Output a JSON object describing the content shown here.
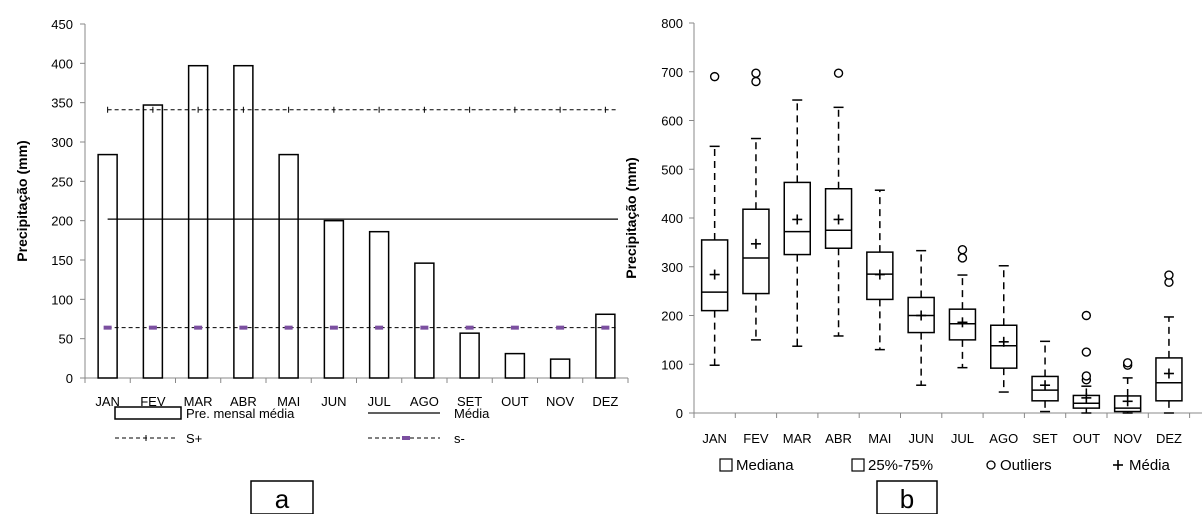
{
  "chart_data": [
    {
      "type": "bar",
      "panel_label": "a",
      "ylabel": "Precipitação (mm)",
      "ylim": [
        0,
        450
      ],
      "yticks": [
        0,
        50,
        100,
        150,
        200,
        250,
        300,
        350,
        400,
        450
      ],
      "categories": [
        "JAN",
        "FEV",
        "MAR",
        "ABR",
        "MAI",
        "JUN",
        "JUL",
        "AGO",
        "SET",
        "OUT",
        "NOV",
        "DEZ"
      ],
      "series": [
        {
          "name": "Pre. mensal média",
          "type": "bar",
          "values": [
            284,
            347,
            397,
            397,
            284,
            200,
            186,
            146,
            57,
            31,
            24,
            81
          ]
        },
        {
          "name": "Média",
          "type": "line",
          "values": [
            202,
            202,
            202,
            202,
            202,
            202,
            202,
            202,
            202,
            202,
            202,
            202
          ]
        },
        {
          "name": "S+",
          "type": "line",
          "values": [
            341,
            341,
            341,
            341,
            341,
            341,
            341,
            341,
            341,
            341,
            341,
            341
          ]
        },
        {
          "name": "s-",
          "type": "line",
          "values": [
            64,
            64,
            64,
            64,
            64,
            64,
            64,
            64,
            64,
            64,
            64,
            64
          ]
        }
      ],
      "grid": false,
      "legend_position": "bottom",
      "colors": {
        "bars": "#000000",
        "s_minus_marker": "#7b4fa0"
      }
    },
    {
      "type": "box",
      "panel_label": "b",
      "ylabel": "Precipitação (mm)",
      "ylim": [
        0,
        800
      ],
      "yticks": [
        0,
        100,
        200,
        300,
        400,
        500,
        600,
        700,
        800
      ],
      "categories": [
        "JAN",
        "FEV",
        "MAR",
        "ABR",
        "MAI",
        "JUN",
        "JUL",
        "AGO",
        "SET",
        "OUT",
        "NOV",
        "DEZ"
      ],
      "boxes": [
        {
          "min": 98,
          "q1": 210,
          "median": 248,
          "q3": 355,
          "max": 547,
          "mean": 284,
          "outliers": [
            690
          ]
        },
        {
          "min": 150,
          "q1": 245,
          "median": 318,
          "q3": 418,
          "max": 563,
          "mean": 347,
          "outliers": [
            680,
            697
          ]
        },
        {
          "min": 137,
          "q1": 325,
          "median": 372,
          "q3": 473,
          "max": 642,
          "mean": 397,
          "outliers": []
        },
        {
          "min": 158,
          "q1": 338,
          "median": 375,
          "q3": 460,
          "max": 627,
          "mean": 397,
          "outliers": [
            697
          ]
        },
        {
          "min": 130,
          "q1": 233,
          "median": 285,
          "q3": 330,
          "max": 457,
          "mean": 284,
          "outliers": []
        },
        {
          "min": 57,
          "q1": 165,
          "median": 200,
          "q3": 237,
          "max": 333,
          "mean": 200,
          "outliers": []
        },
        {
          "min": 93,
          "q1": 150,
          "median": 183,
          "q3": 213,
          "max": 283,
          "mean": 186,
          "outliers": [
            318,
            335
          ]
        },
        {
          "min": 43,
          "q1": 92,
          "median": 138,
          "q3": 180,
          "max": 302,
          "mean": 146,
          "outliers": []
        },
        {
          "min": 3,
          "q1": 25,
          "median": 47,
          "q3": 75,
          "max": 147,
          "mean": 57,
          "outliers": []
        },
        {
          "min": 0,
          "q1": 10,
          "median": 20,
          "q3": 36,
          "max": 55,
          "mean": 31,
          "outliers": [
            68,
            76,
            125,
            200
          ]
        },
        {
          "min": 0,
          "q1": 3,
          "median": 10,
          "q3": 35,
          "max": 72,
          "mean": 24,
          "outliers": [
            98,
            103
          ]
        },
        {
          "min": 0,
          "q1": 25,
          "median": 62,
          "q3": 113,
          "max": 197,
          "mean": 81,
          "outliers": [
            268,
            283
          ]
        }
      ],
      "legend": [
        {
          "symbol": "square",
          "label": "Mediana"
        },
        {
          "symbol": "square",
          "label": "25%-75%"
        },
        {
          "symbol": "circle",
          "label": "Outliers"
        },
        {
          "symbol": "plus",
          "label": "Média"
        }
      ],
      "grid": false,
      "legend_position": "bottom"
    }
  ]
}
